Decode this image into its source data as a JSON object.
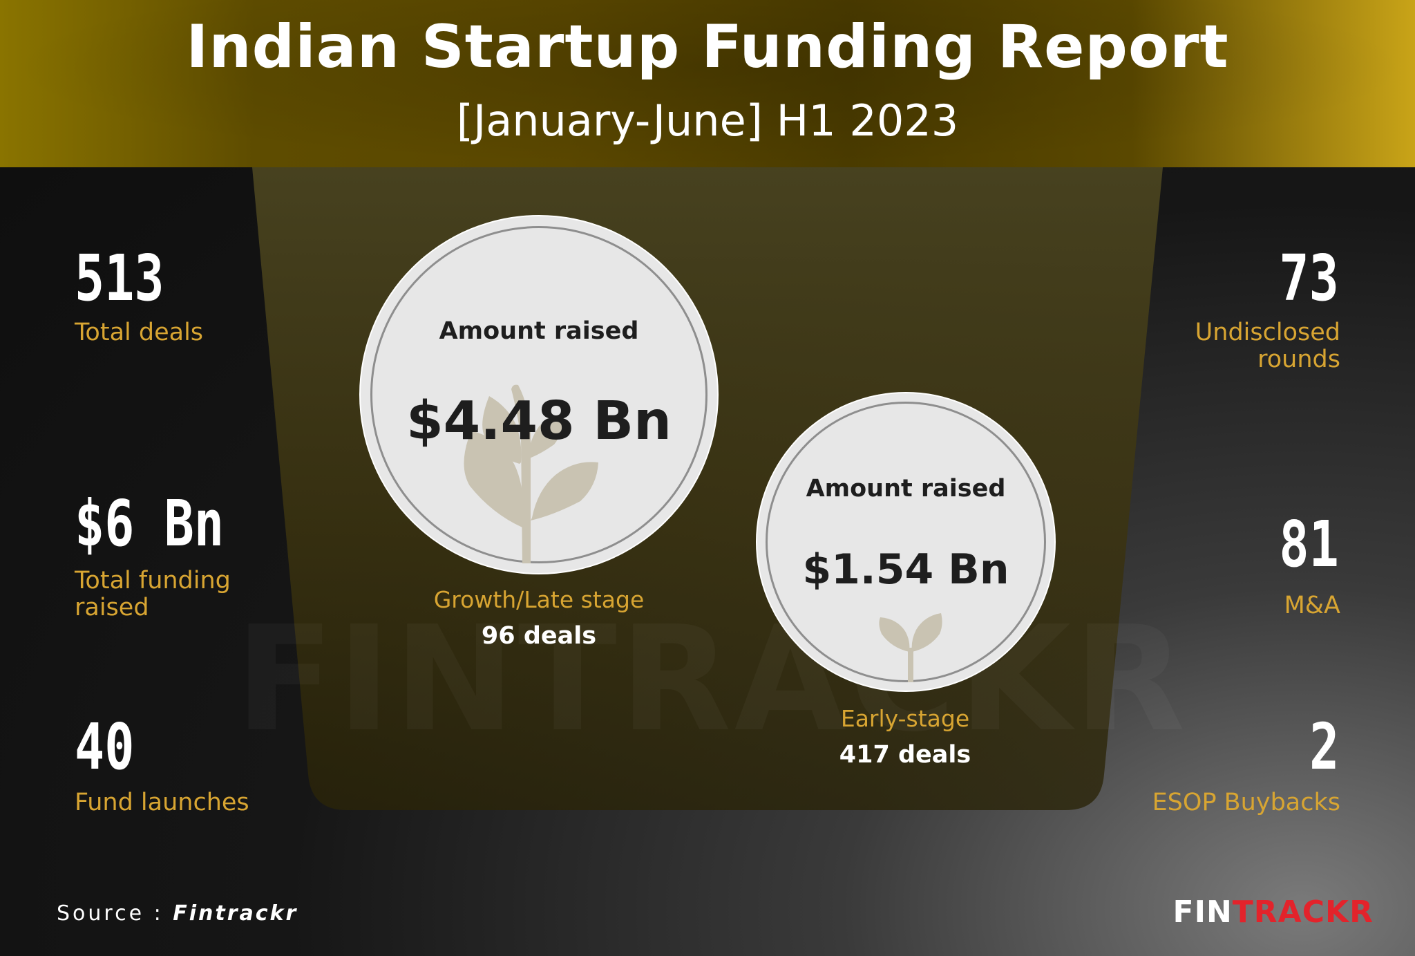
{
  "header": {
    "title": "Indian Startup Funding Report",
    "subtitle": "[January-June] H1 2023"
  },
  "left_stats": [
    {
      "value": "513",
      "label": "Total deals"
    },
    {
      "value": "$6 Bn",
      "label": "Total funding raised"
    },
    {
      "value": "40",
      "label": "Fund launches"
    }
  ],
  "right_stats": [
    {
      "value": "73",
      "label": "Undisclosed rounds"
    },
    {
      "value": "81",
      "label": "M&A"
    },
    {
      "value": "2",
      "label": "ESOP Buybacks"
    }
  ],
  "growth": {
    "circle_label": "Amount raised",
    "amount": "$4.48 Bn",
    "stage": "Growth/Late stage",
    "deals": "96 deals"
  },
  "early": {
    "circle_label": "Amount raised",
    "amount": "$1.54 Bn",
    "stage": "Early-stage",
    "deals": "417 deals"
  },
  "footer": {
    "source_prefix": "Source :",
    "source_name": "Fintrackr",
    "logo_part1": "FIN",
    "logo_part2": "TRACKR"
  },
  "watermark": "FINTRACKR",
  "colors": {
    "accent": "#d8a532",
    "brand_red": "#e3232b",
    "header_gold": "#5e4c00"
  },
  "icons": [
    "plant-icon",
    "sprout-icon"
  ]
}
